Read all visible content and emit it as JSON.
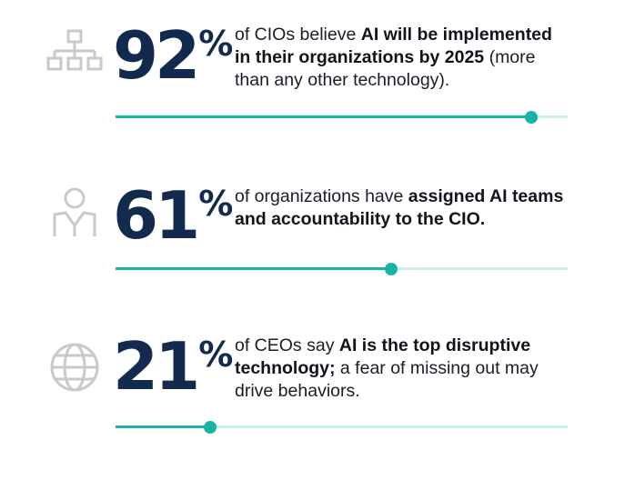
{
  "colors": {
    "number": "#132a4f",
    "accent": "#17b3a3",
    "track": "#c7eeea",
    "icon": "#c9c9c9"
  },
  "stats": [
    {
      "icon": "org-chart-icon",
      "number": "92",
      "percent_sign": "%",
      "text_parts": [
        "of CIOs believe ",
        "AI will be implemented in their organizations by 2025",
        " (more than any other technology)."
      ],
      "progress": 0.92
    },
    {
      "icon": "person-icon",
      "number": "61",
      "percent_sign": "%",
      "text_parts": [
        "of organizations have ",
        "assigned AI teams and accountability to the CIO."
      ],
      "progress": 0.61
    },
    {
      "icon": "globe-icon",
      "number": "21",
      "percent_sign": "%",
      "text_parts": [
        "of CEOs say ",
        "AI is the top disruptive technology;",
        " a fear of missing out may drive behaviors."
      ],
      "progress": 0.21
    }
  ]
}
